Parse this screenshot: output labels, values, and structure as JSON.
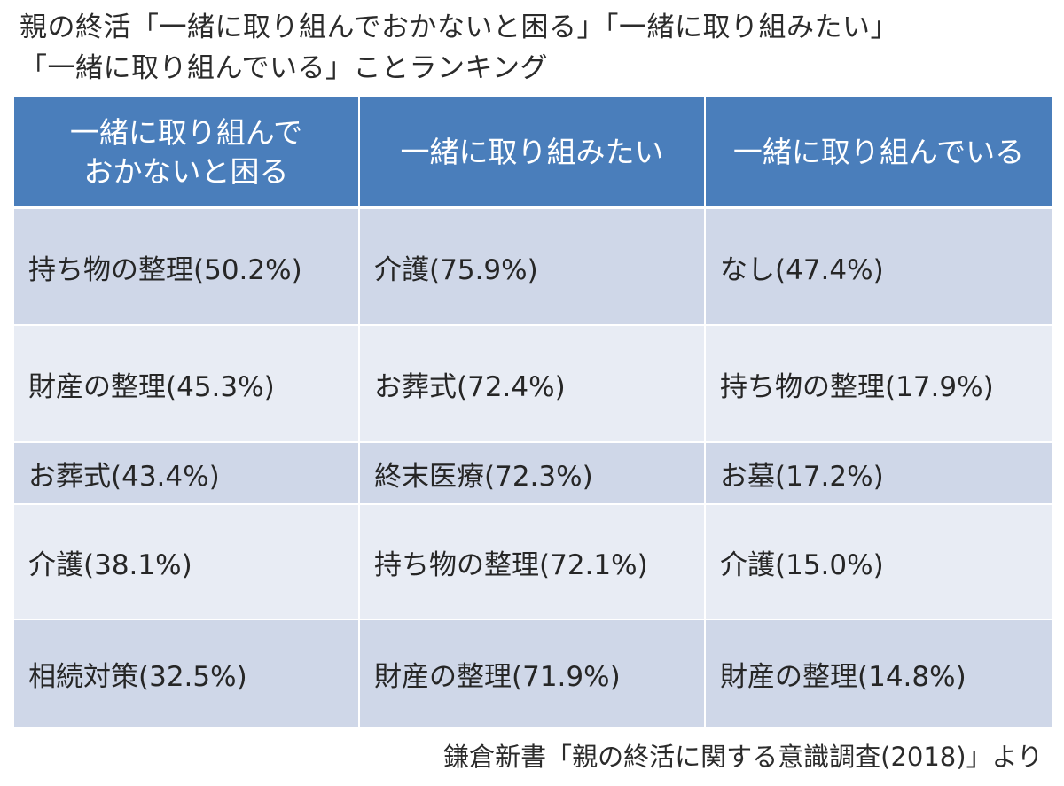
{
  "title": {
    "line1": "親の終活「一緒に取り組んでおかないと困る」「一緒に取り組みたい」",
    "line2": "「一緒に取り組んでいる」ことランキング"
  },
  "table": {
    "headers": [
      {
        "line1": "一緒に取り組んで",
        "line2": "おかないと困る"
      },
      {
        "line1": "一緒に取り組みたい",
        "line2": ""
      },
      {
        "line1": "一緒に取り組んでいる",
        "line2": ""
      }
    ],
    "rows": [
      [
        "持ち物の整理(50.2%)",
        "介護(75.9%)",
        "なし(47.4%)"
      ],
      [
        "財産の整理(45.3%)",
        "お葬式(72.4%)",
        "持ち物の整理(17.9%)"
      ],
      [
        "お葬式(43.4%)",
        "終末医療(72.3%)",
        "お墓(17.2%)"
      ],
      [
        "介護(38.1%)",
        "持ち物の整理(72.1%)",
        "介護(15.0%)"
      ],
      [
        "相続対策(32.5%)",
        "財産の整理(71.9%)",
        "財産の整理(14.8%)"
      ]
    ]
  },
  "source": "鎌倉新書「親の終活に関する意識調査(2018)」より",
  "colors": {
    "header_bg": "#4a7ebb",
    "row_dark": "#cfd7e8",
    "row_light": "#e8ecf4"
  }
}
